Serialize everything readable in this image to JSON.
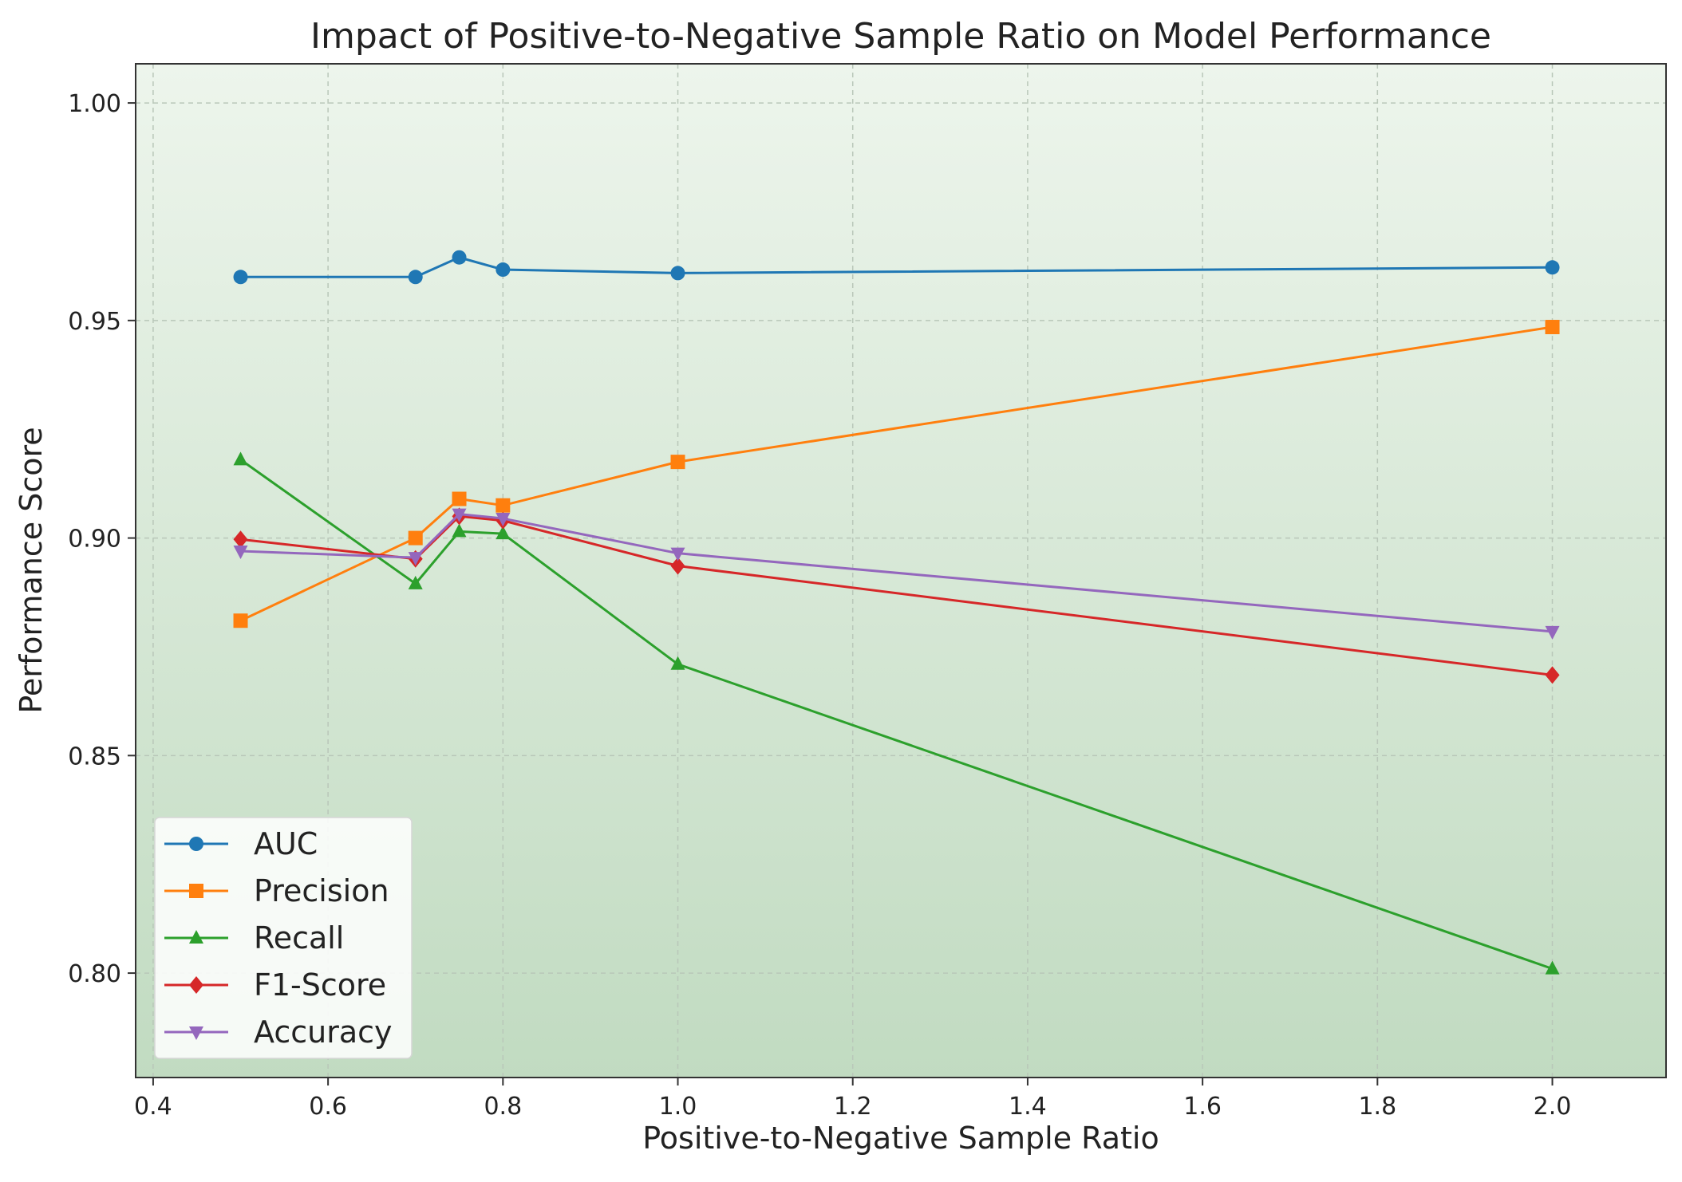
{
  "chart_data": {
    "type": "line",
    "title": "Impact of Positive-to-Negative Sample Ratio on Model Performance",
    "xlabel": "Positive-to-Negative Sample Ratio",
    "ylabel": "Performance Score",
    "x": [
      0.5,
      0.7,
      0.75,
      0.8,
      1.0,
      2.0
    ],
    "xlim": [
      0.38,
      2.13
    ],
    "ylim": [
      0.776,
      1.009
    ],
    "xticks": [
      0.4,
      0.6,
      0.8,
      1.0,
      1.2,
      1.4,
      1.6,
      1.8,
      2.0
    ],
    "xtick_labels": [
      "0.4",
      "0.6",
      "0.8",
      "1.0",
      "1.2",
      "1.4",
      "1.6",
      "1.8",
      "2.0"
    ],
    "yticks": [
      0.8,
      0.85,
      0.9,
      0.95,
      1.0
    ],
    "ytick_labels": [
      "0.80",
      "0.85",
      "0.90",
      "0.95",
      "1.00"
    ],
    "grid": true,
    "legend_position": "lower-left",
    "series": [
      {
        "name": "AUC",
        "color": "#1f77b4",
        "marker": "circle",
        "values": [
          0.96,
          0.96,
          0.9645,
          0.9617,
          0.9609,
          0.9622
        ]
      },
      {
        "name": "Precision",
        "color": "#ff7f0e",
        "marker": "square",
        "values": [
          0.881,
          0.9,
          0.909,
          0.9075,
          0.9175,
          0.9485
        ]
      },
      {
        "name": "Recall",
        "color": "#2ca02c",
        "marker": "triangle-up",
        "values": [
          0.918,
          0.8895,
          0.9015,
          0.901,
          0.871,
          0.801
        ]
      },
      {
        "name": "F1-Score",
        "color": "#d62728",
        "marker": "diamond",
        "values": [
          0.8997,
          0.8952,
          0.905,
          0.904,
          0.8936,
          0.8685
        ]
      },
      {
        "name": "Accuracy",
        "color": "#9467bd",
        "marker": "triangle-down",
        "values": [
          0.897,
          0.8955,
          0.9055,
          0.9045,
          0.8965,
          0.8785
        ]
      }
    ],
    "background_gradient": [
      "#edf5ec",
      "#c1dbc1"
    ],
    "grid_color": "#b9c7b9",
    "axis_color": "#333333"
  }
}
